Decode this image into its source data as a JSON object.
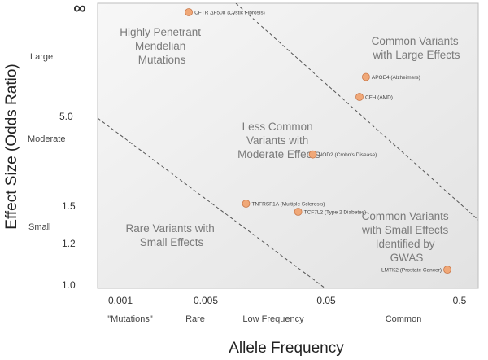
{
  "chart_data": {
    "type": "scatter",
    "xlabel": "Allele Frequency",
    "ylabel": "Effect Size (Odds Ratio)",
    "x_ticks": [
      "0.001",
      "0.005",
      "0.05",
      "0.5"
    ],
    "y_ticks": [
      "∞",
      "5.0",
      "1.5",
      "1.2",
      "1.0"
    ],
    "x_bands": [
      "\"Mutations\"",
      "Rare",
      "Low Frequency",
      "Common"
    ],
    "y_bands": [
      "Large",
      "Moderate",
      "Small"
    ],
    "regions": [
      {
        "lines": [
          "Highly Penetrant",
          "Mendelian",
          "Mutations"
        ]
      },
      {
        "lines": [
          "Common Variants",
          "with Large Effects"
        ]
      },
      {
        "lines": [
          "Less Common",
          "Variants with",
          "Moderate Effects"
        ]
      },
      {
        "lines": [
          "Rare Variants with",
          "Small Effects"
        ]
      },
      {
        "lines": [
          "Common Variants",
          "with Small Effects",
          "Identified by",
          "GWAS"
        ]
      }
    ],
    "points": [
      {
        "label": "CFTR ΔF508 (Cystic Fibrosis)",
        "x": 0.0035,
        "y": "∞"
      },
      {
        "label": "APOE4 (Alzheimers)",
        "x": 0.09,
        "y": 8.5
      },
      {
        "label": "CFH (AMD)",
        "x": 0.08,
        "y": 6.5
      },
      {
        "label": "NOD2 (Crohn's Disease)",
        "x": 0.034,
        "y": 3.0
      },
      {
        "label": "TNFRSF1A (Multiple Sclerosis)",
        "x": 0.01,
        "y": 1.55
      },
      {
        "label": "TCF7L2 (Type 2 Diabetes)",
        "x": 0.026,
        "y": 1.45
      },
      {
        "label": "LMTK2 (Prostate Cancer)",
        "x": 0.4,
        "y": 1.07
      }
    ],
    "colors": {
      "point": "#f0a878",
      "point_stroke": "#c9784a",
      "plot_bg": "#f2f2f2",
      "dashed": "#555555"
    }
  }
}
